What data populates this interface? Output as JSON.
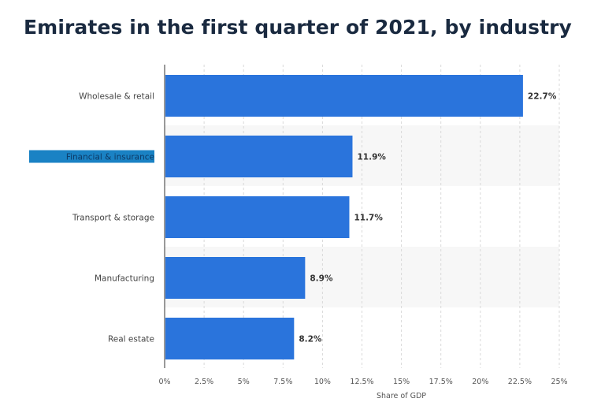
{
  "title": "Emirates in the first quarter of 2021, by industry",
  "colors": {
    "bar": "#2a74dc",
    "highlight": "#1a82c4",
    "band": "#f7f7f7",
    "grid": "#d9d9d9"
  },
  "chart_data": {
    "type": "bar",
    "orientation": "horizontal",
    "categories": [
      "Wholesale & retail",
      "Financial & insurance",
      "Transport & storage",
      "Manufacturing",
      "Real estate"
    ],
    "values": [
      22.7,
      11.9,
      11.7,
      8.9,
      8.2
    ],
    "value_labels": [
      "22.7%",
      "11.9%",
      "11.7%",
      "8.9%",
      "8.2%"
    ],
    "highlighted_category_index": 1,
    "xlabel": "Share of GDP",
    "xlim": [
      0,
      25
    ],
    "xticks": [
      0,
      2.5,
      5,
      7.5,
      10,
      12.5,
      15,
      17.5,
      20,
      22.5,
      25
    ],
    "xtick_labels": [
      "0%",
      "2.5%",
      "5%",
      "7.5%",
      "10%",
      "12.5%",
      "15%",
      "17.5%",
      "20%",
      "22.5%",
      "25%"
    ],
    "grid": true,
    "alternating_bands": true
  }
}
